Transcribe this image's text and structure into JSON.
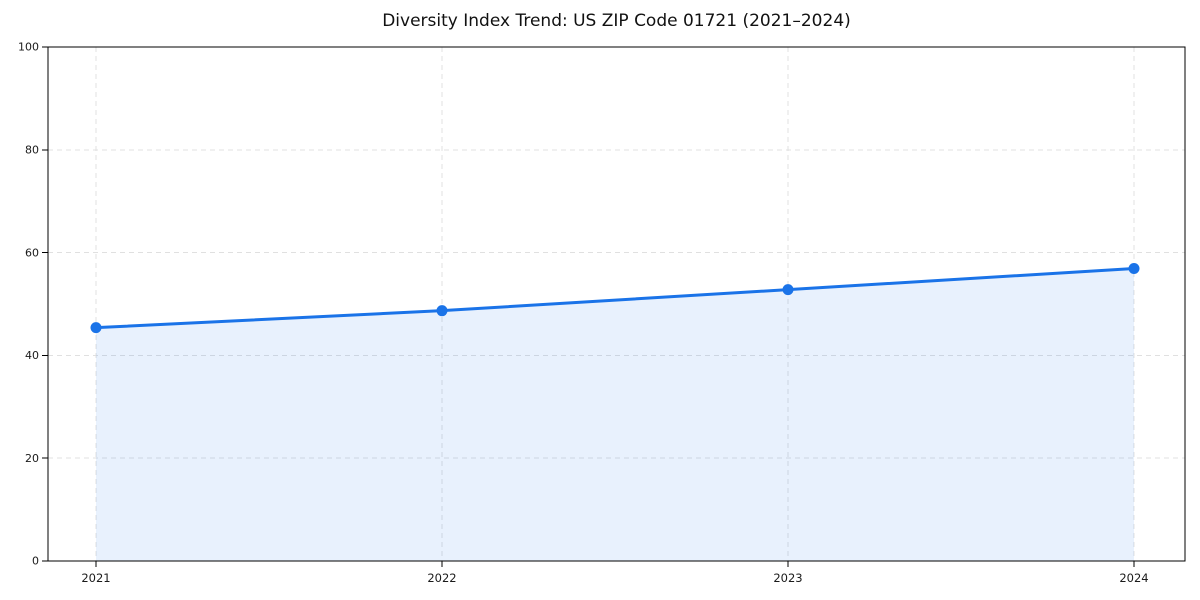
{
  "chart_data": {
    "type": "area",
    "title": "Diversity Index Trend: US ZIP Code 01721 (2021–2024)",
    "categories": [
      "2021",
      "2022",
      "2023",
      "2024"
    ],
    "series": [
      {
        "name": "Diversity Index",
        "values": [
          45.4,
          48.7,
          52.8,
          56.9
        ]
      }
    ],
    "xlabel": "",
    "ylabel": "",
    "ylim": [
      0,
      100
    ],
    "yticks": [
      0,
      20,
      40,
      60,
      80,
      100
    ],
    "grid": true,
    "grid_style": "dashed",
    "legend": false,
    "marker": "circle",
    "colors": {
      "line": "#1a73e8",
      "marker": "#1a73e8",
      "fill": "rgba(26,115,232,0.10)",
      "grid": "#e0e0e0",
      "spine": "#000000",
      "tick_text": "#1a1a1a",
      "title_text": "#111111",
      "background": "#ffffff"
    }
  }
}
